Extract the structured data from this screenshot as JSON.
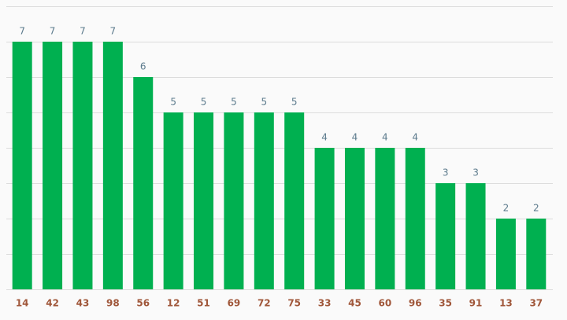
{
  "chart_data": {
    "type": "bar",
    "categories": [
      "14",
      "42",
      "43",
      "98",
      "56",
      "12",
      "51",
      "69",
      "72",
      "75",
      "33",
      "45",
      "60",
      "96",
      "35",
      "91",
      "13",
      "37"
    ],
    "values": [
      7,
      7,
      7,
      7,
      6,
      5,
      5,
      5,
      5,
      5,
      4,
      4,
      4,
      4,
      3,
      3,
      2,
      2
    ],
    "color": "#00b050",
    "ylim": [
      0,
      8
    ],
    "yticks": [
      0,
      1,
      2,
      3,
      4,
      5,
      6,
      7,
      8
    ],
    "grid": true
  }
}
